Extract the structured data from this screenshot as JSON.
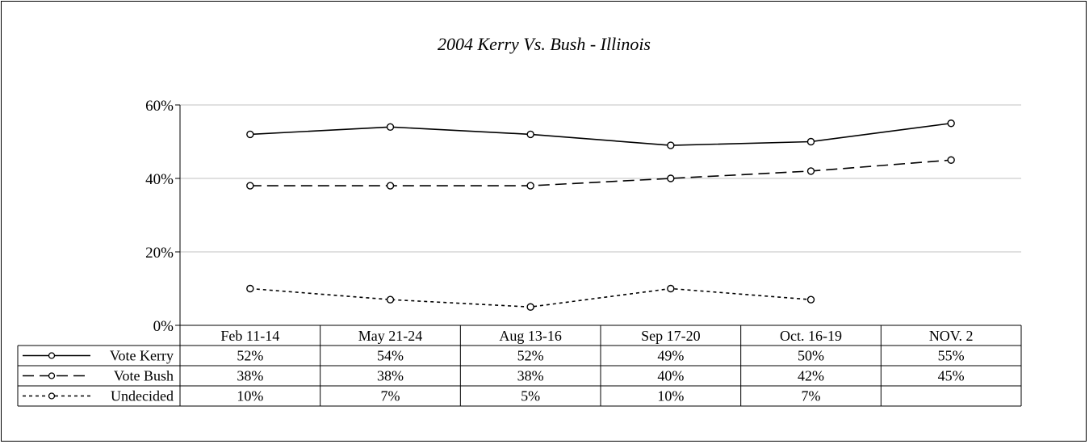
{
  "chart_data": {
    "type": "line",
    "title": "2004 Kerry Vs. Bush - Illinois",
    "xlabel": "",
    "ylabel": "",
    "categories": [
      "Feb 11-14",
      "May 21-24",
      "Aug 13-16",
      "Sep 17-20",
      "Oct. 16-19",
      "NOV. 2"
    ],
    "ylim": [
      0,
      60
    ],
    "yticks": [
      0,
      20,
      40,
      60
    ],
    "ytick_labels": [
      "0%",
      "20%",
      "40%",
      "60%"
    ],
    "grid": true,
    "legend": "data-table",
    "series": [
      {
        "name": "Vote Kerry",
        "line_style": "solid",
        "values": [
          52,
          54,
          52,
          49,
          50,
          55
        ],
        "labels": [
          "52%",
          "54%",
          "52%",
          "49%",
          "50%",
          "55%"
        ]
      },
      {
        "name": "Vote Bush",
        "line_style": "long-dash",
        "values": [
          38,
          38,
          38,
          40,
          42,
          45
        ],
        "labels": [
          "38%",
          "38%",
          "38%",
          "40%",
          "42%",
          "45%"
        ]
      },
      {
        "name": "Undecided",
        "line_style": "short-dash",
        "values": [
          10,
          7,
          5,
          10,
          7,
          null
        ],
        "labels": [
          "10%",
          "7%",
          "5%",
          "10%",
          "7%",
          ""
        ]
      }
    ]
  },
  "colors": {
    "line": "#000000",
    "grid": "#c0c0c0",
    "background": "#ffffff"
  }
}
